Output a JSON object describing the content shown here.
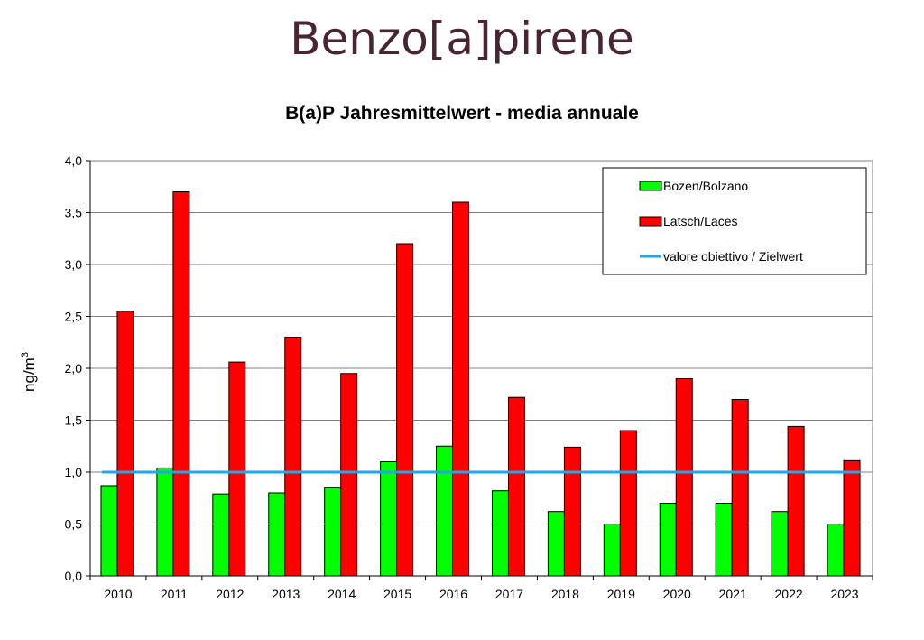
{
  "page": {
    "title": "Benzo[a]pirene"
  },
  "chart_data": {
    "type": "bar",
    "title": "B(a)P Jahresmittelwert - media annuale",
    "xlabel": "",
    "ylabel": "ng/m",
    "ylabel_superscript": "3",
    "ylim": [
      0,
      4.0
    ],
    "ytick_step": 0.5,
    "ytick_labels": [
      "0,0",
      "0,5",
      "1,0",
      "1,5",
      "2,0",
      "2,5",
      "3,0",
      "3,5",
      "4,0"
    ],
    "grid": true,
    "legend_position": "top-right",
    "categories": [
      "2010",
      "2011",
      "2012",
      "2013",
      "2014",
      "2015",
      "2016",
      "2017",
      "2018",
      "2019",
      "2020",
      "2021",
      "2022",
      "2023"
    ],
    "series": [
      {
        "name": "Bozen/Bolzano",
        "color": "#00ff00",
        "values": [
          0.87,
          1.04,
          0.79,
          0.8,
          0.85,
          1.1,
          1.25,
          0.82,
          0.62,
          0.5,
          0.7,
          0.7,
          0.62,
          0.5
        ]
      },
      {
        "name": "Latsch/Laces",
        "color": "#ff0000",
        "values": [
          2.55,
          3.7,
          2.06,
          2.3,
          1.95,
          3.2,
          3.6,
          1.72,
          1.24,
          1.4,
          1.9,
          1.7,
          1.44,
          1.11
        ]
      }
    ],
    "reference_line": {
      "name": "valore obiettivo / Zielwert",
      "value": 1.0,
      "color": "#1ea8e8"
    }
  }
}
